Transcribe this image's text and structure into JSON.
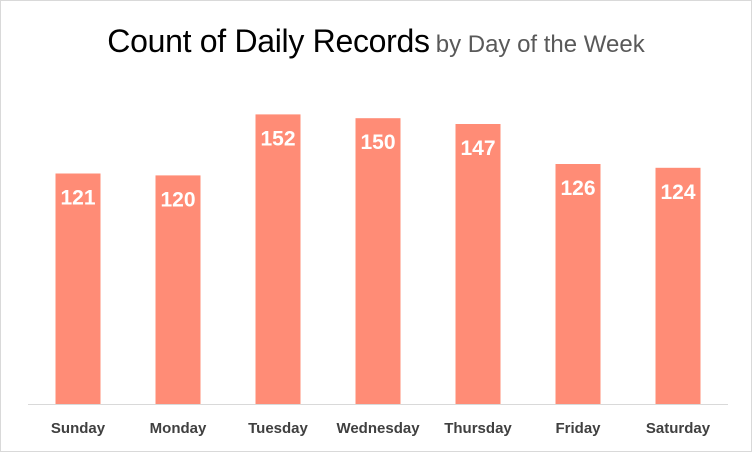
{
  "chart_data": {
    "type": "bar",
    "title": "Count of Daily Records",
    "subtitle": "by Day of the Week",
    "categories": [
      "Sunday",
      "Monday",
      "Tuesday",
      "Wednesday",
      "Thursday",
      "Friday",
      "Saturday"
    ],
    "values": [
      121,
      120,
      152,
      150,
      147,
      126,
      124
    ],
    "ylim": [
      0,
      158
    ],
    "grid": false,
    "legend": "none",
    "bar_color": "#ff8c76",
    "data_labels": true
  }
}
